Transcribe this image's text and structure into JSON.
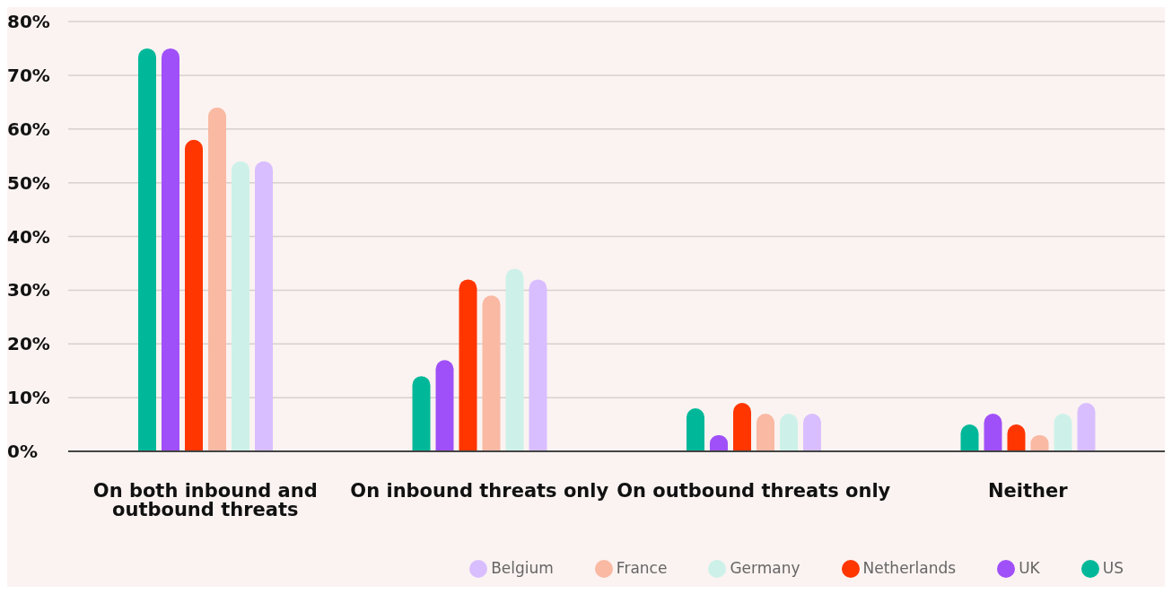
{
  "chart_data": {
    "type": "bar",
    "categories": [
      "On both inbound and outbound threats",
      "On inbound threats only",
      "On outbound threats only",
      "Neither"
    ],
    "series": [
      {
        "name": "US",
        "color": "#00b899",
        "values": [
          75,
          14,
          8,
          5
        ]
      },
      {
        "name": "UK",
        "color": "#a050f8",
        "values": [
          75,
          17,
          3,
          7
        ]
      },
      {
        "name": "Netherlands",
        "color": "#ff3600",
        "values": [
          58,
          32,
          9,
          5
        ]
      },
      {
        "name": "France",
        "color": "#f9b9a3",
        "values": [
          64,
          29,
          7,
          3
        ]
      },
      {
        "name": "Germany",
        "color": "#cdf1e9",
        "values": [
          54,
          34,
          7,
          7
        ]
      },
      {
        "name": "Belgium",
        "color": "#d9beff",
        "values": [
          54,
          32,
          7,
          9
        ]
      }
    ],
    "ylim": [
      0,
      80
    ],
    "yticks": [
      {
        "value": 0,
        "label": "0%"
      },
      {
        "value": 10,
        "label": "10%"
      },
      {
        "value": 20,
        "label": "20%"
      },
      {
        "value": 30,
        "label": "30%"
      },
      {
        "value": 40,
        "label": "40%"
      },
      {
        "value": 50,
        "label": "50%"
      },
      {
        "value": 60,
        "label": "60%"
      },
      {
        "value": 70,
        "label": "70%"
      },
      {
        "value": 80,
        "label": "80%"
      }
    ],
    "grid": "y",
    "legend": "bottom right"
  }
}
